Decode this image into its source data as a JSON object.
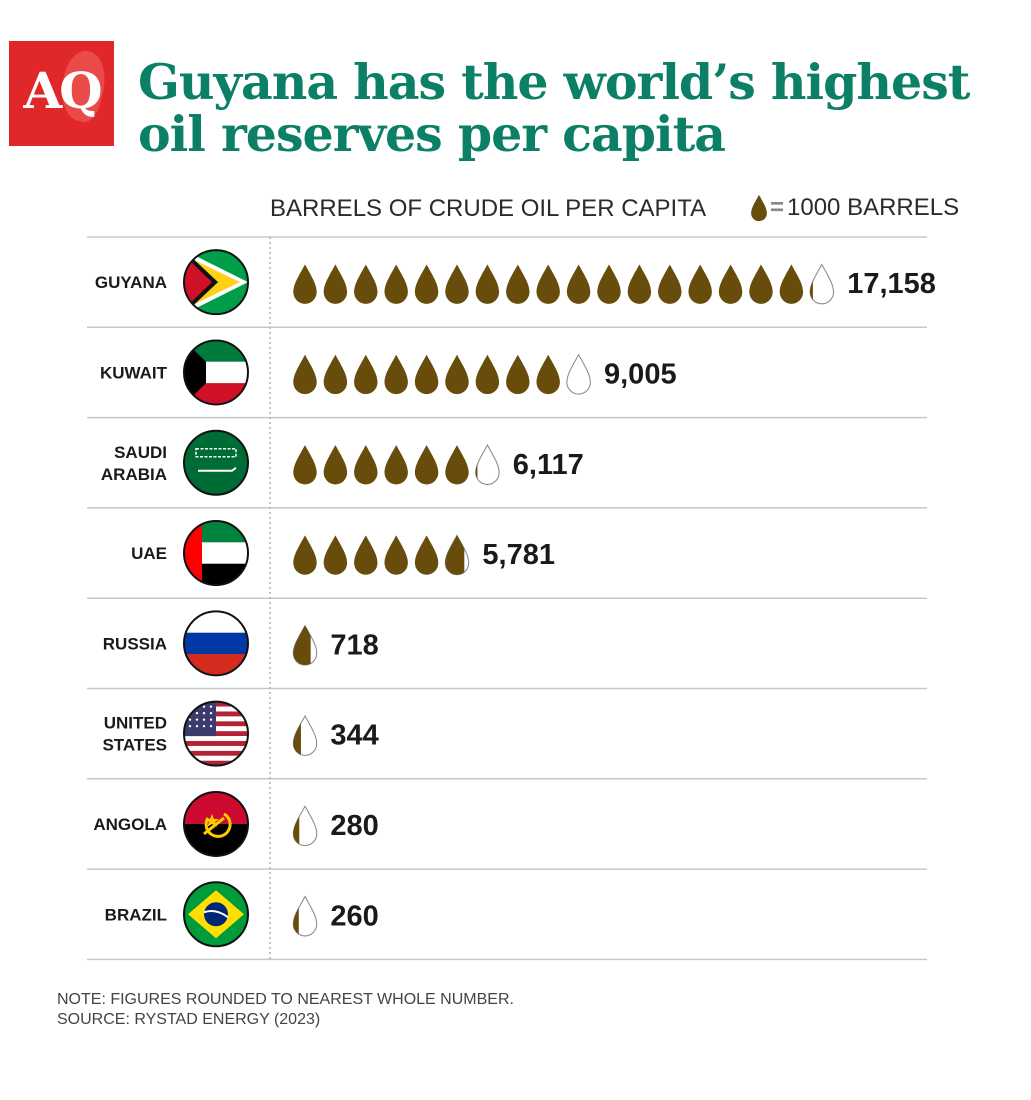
{
  "logo_text": "AQ",
  "title": "Guyana has the world’s highest oil reserves per capita",
  "unit_label": "BARRELS OF CRUDE OIL PER CAPITA",
  "legend": {
    "icon": "oil-drop-icon",
    "equals": "=",
    "text": "1000 BARRELS"
  },
  "footnote": {
    "note": "NOTE: FIGURES ROUNDED TO NEAREST WHOLE NUMBER.",
    "source": "SOURCE: RYSTAD ENERGY (2023)"
  },
  "colors": {
    "title": "#0b8066",
    "logo": "#e0282a",
    "drop": "#684c0c",
    "grid": "#c8c8c8"
  },
  "chart_data": {
    "type": "bar",
    "unit_per_icon": 1000,
    "categories": [
      "GUYANA",
      "KUWAIT",
      "SAUDI ARABIA",
      "UAE",
      "RUSSIA",
      "UNITED STATES",
      "ANGOLA",
      "BRAZIL"
    ],
    "values": [
      17158,
      9005,
      6117,
      5781,
      718,
      344,
      280,
      260
    ],
    "value_labels": [
      "17,158",
      "9,005",
      "6,117",
      "5,781",
      "718",
      "344",
      "280",
      "260"
    ],
    "name_lines": [
      [
        "GUYANA"
      ],
      [
        "KUWAIT"
      ],
      [
        "SAUDI",
        "ARABIA"
      ],
      [
        "UAE"
      ],
      [
        "RUSSIA"
      ],
      [
        "UNITED",
        "STATES"
      ],
      [
        "ANGOLA"
      ],
      [
        "BRAZIL"
      ]
    ],
    "flags": [
      "guyana-flag-icon",
      "kuwait-flag-icon",
      "saudi-arabia-flag-icon",
      "uae-flag-icon",
      "russia-flag-icon",
      "united-states-flag-icon",
      "angola-flag-icon",
      "brazil-flag-icon"
    ]
  }
}
